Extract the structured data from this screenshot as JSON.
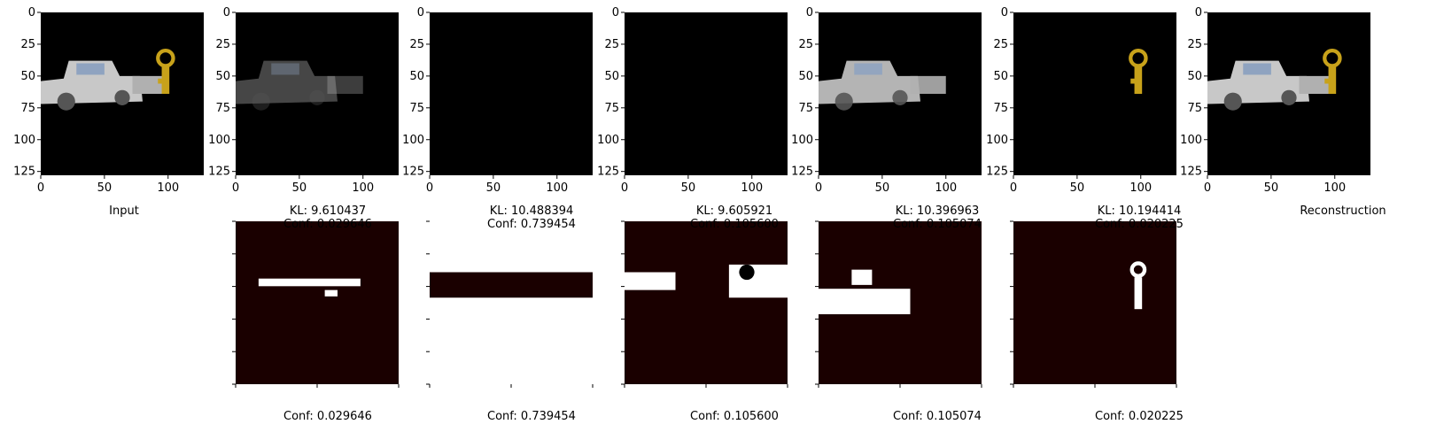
{
  "top_row": [
    {
      "label": "Input"
    },
    {
      "label": "KL: 9.610437\nConf: 0.029646"
    },
    {
      "label": "KL: 10.488394\nConf: 0.739454"
    },
    {
      "label": "KL: 9.605921\nConf: 0.105600"
    },
    {
      "label": "KL: 10.396963\nConf: 0.105074"
    },
    {
      "label": "KL: 10.194414\nConf: 0.020225"
    },
    {
      "label": "Reconstruction"
    }
  ],
  "bottom_row": [
    {
      "label": "Conf: 0.029646"
    },
    {
      "label": "Conf: 0.739454"
    },
    {
      "label": "Conf: 0.105600"
    },
    {
      "label": "Conf: 0.105074"
    },
    {
      "label": "Conf: 0.020225"
    }
  ],
  "axes": {
    "y_ticks": [
      "0",
      "25",
      "50",
      "75",
      "100",
      "125"
    ],
    "x_ticks": [
      "0",
      "50",
      "100"
    ]
  },
  "colors": {
    "background": "#000000",
    "car": "#c8c8c8",
    "key": "#c8a21a",
    "mask": "#ffffff",
    "mask_edge": "#e05a10"
  }
}
